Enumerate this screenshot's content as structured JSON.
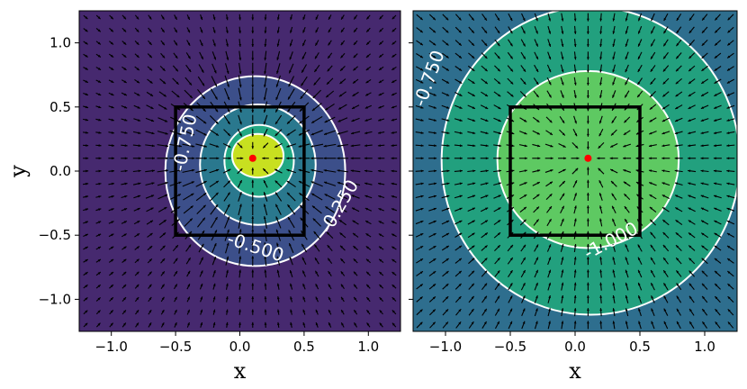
{
  "chart_data": [
    {
      "type": "contour",
      "panel": "left",
      "xlabel": "x",
      "ylabel": "y",
      "xlim": [
        -1.25,
        1.25
      ],
      "ylim": [
        -1.25,
        1.25
      ],
      "xticks": [
        -1.0,
        -0.5,
        0.0,
        0.5,
        1.0
      ],
      "yticks": [
        -1.0,
        -0.5,
        0.0,
        0.5,
        1.0
      ],
      "xtick_labels": [
        "−1.0",
        "−0.5",
        "0.0",
        "0.5",
        "1.0"
      ],
      "ytick_labels": [
        "−1.0",
        "−0.5",
        "0.0",
        "0.5",
        "1.0"
      ],
      "background_color": "#46296f",
      "levels": [
        {
          "value": -0.25,
          "fill": "#3c4f8a"
        },
        {
          "value": -0.5,
          "fill": "#2a788e"
        },
        {
          "value": -0.75,
          "fill": "#22a884"
        },
        {
          "value": -1.0,
          "fill": "#c8e020"
        }
      ],
      "contour_labels": [
        {
          "text": "-0.750",
          "x": -0.42,
          "y": 0.22,
          "angle": -78
        },
        {
          "text": "-0.500",
          "x": 0.12,
          "y": -0.6,
          "angle": 18
        },
        {
          "text": "-0.250",
          "x": 0.78,
          "y": -0.28,
          "angle": -60
        }
      ],
      "square": {
        "x": [
          -0.5,
          0.5
        ],
        "y": [
          -0.5,
          0.5
        ]
      },
      "center_point": {
        "x": 0.1,
        "y": 0.1,
        "color": "#ff0000"
      }
    },
    {
      "type": "contour",
      "panel": "right",
      "xlabel": "x",
      "ylabel": "",
      "xlim": [
        -1.25,
        1.25
      ],
      "ylim": [
        -1.25,
        1.25
      ],
      "xticks": [
        -1.0,
        -0.5,
        0.0,
        0.5,
        1.0
      ],
      "xtick_labels": [
        "−1.0",
        "−0.5",
        "0.0",
        "0.5",
        "1.0"
      ],
      "background_color": "#2e6e8e",
      "levels": [
        {
          "value": -0.75,
          "fill": "#22a07e"
        },
        {
          "value": -1.0,
          "fill": "#5ec962"
        }
      ],
      "contour_labels": [
        {
          "text": "-0.750",
          "x": -1.12,
          "y": 0.72,
          "angle": -70
        },
        {
          "text": "-1.000",
          "x": 0.28,
          "y": -0.55,
          "angle": -28
        }
      ],
      "square": {
        "x": [
          -0.5,
          0.5
        ],
        "y": [
          -0.5,
          0.5
        ]
      },
      "center_point": {
        "x": 0.1,
        "y": 0.1,
        "color": "#ff0000"
      }
    }
  ]
}
